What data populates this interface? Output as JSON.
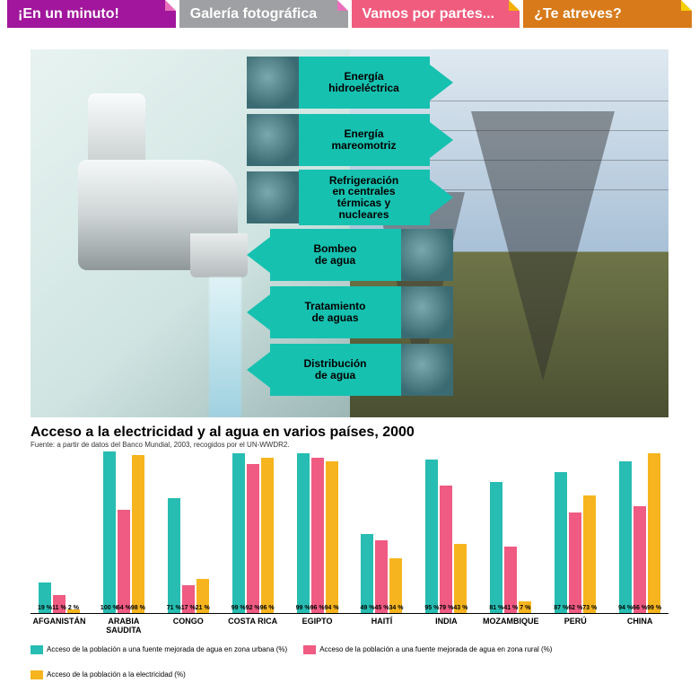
{
  "tabs": [
    {
      "label": "¡En un minuto!",
      "bg": "#a1169c",
      "fold": "#e96fbc"
    },
    {
      "label": "Galería fotográfica",
      "bg": "#9fa0a3",
      "fold": "#e96fbc"
    },
    {
      "label": "Vamos por partes...",
      "bg": "#f05c7e",
      "fold": "#f4b000"
    },
    {
      "label": "¿Te atreves?",
      "bg": "#d87a1a",
      "fold": "#f4d000"
    }
  ],
  "energy_items": [
    {
      "label": "Energía\nhidroeléctrica",
      "dir": "right"
    },
    {
      "label": "Energía\nmareomotriz",
      "dir": "right"
    },
    {
      "label": "Refrigeración\nen centrales\ntérmicas y\nnucleares",
      "dir": "right"
    },
    {
      "label": "Bombeo\nde agua",
      "dir": "left"
    },
    {
      "label": "Tratamiento\nde aguas",
      "dir": "left"
    },
    {
      "label": "Distribución\nde agua",
      "dir": "left"
    }
  ],
  "accent_color": "#16c1b0",
  "chart": {
    "type": "grouped-bar",
    "title": "Acceso a la electricidad y al agua en varios países, 2000",
    "source": "Fuente: a partir de datos del Banco Mundial, 2003, recogidos por el UN-WWDR2.",
    "ylim": [
      0,
      100
    ],
    "series": [
      {
        "key": "urban_water",
        "color": "#27bdb2",
        "label": "Acceso de la población a una fuente mejorada de agua en zona urbana (%)"
      },
      {
        "key": "rural_water",
        "color": "#ef5b82",
        "label": "Acceso de la población a una fuente mejorada de agua en zona rural (%)"
      },
      {
        "key": "electricity",
        "color": "#f6b51e",
        "label": "Acceso de la población a la electricidad (%)"
      }
    ],
    "countries": [
      {
        "name": "AFGANISTÁN",
        "urban_water": 19,
        "rural_water": 11,
        "electricity": 2
      },
      {
        "name": "ARABIA SAUDITA",
        "urban_water": 100,
        "rural_water": 64,
        "electricity": 98
      },
      {
        "name": "CONGO",
        "urban_water": 71,
        "rural_water": 17,
        "electricity": 21
      },
      {
        "name": "COSTA RICA",
        "urban_water": 99,
        "rural_water": 92,
        "electricity": 96
      },
      {
        "name": "EGIPTO",
        "urban_water": 99,
        "rural_water": 96,
        "electricity": 94
      },
      {
        "name": "HAITÍ",
        "urban_water": 49,
        "rural_water": 45,
        "electricity": 34
      },
      {
        "name": "INDIA",
        "urban_water": 95,
        "rural_water": 79,
        "electricity": 43
      },
      {
        "name": "MOZAMBIQUE",
        "urban_water": 81,
        "rural_water": 41,
        "electricity": 7
      },
      {
        "name": "PERÚ",
        "urban_water": 87,
        "rural_water": 62,
        "electricity": 73
      },
      {
        "name": "CHINA",
        "urban_water": 94,
        "rural_water": 66,
        "electricity": 99
      }
    ],
    "label_fontsize": 9,
    "value_fontsize": 7,
    "background_color": "#ffffff"
  }
}
